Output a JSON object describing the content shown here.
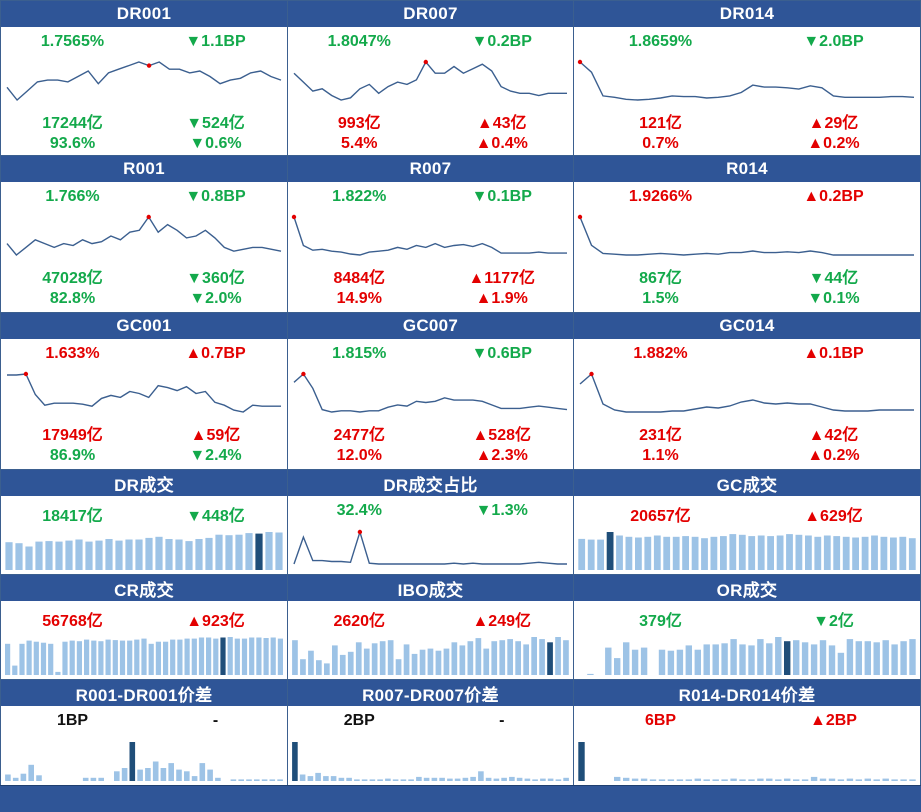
{
  "colors": {
    "header": "#2f5597",
    "up": "#e30000",
    "down": "#13a94b",
    "line": "#3b5f8f",
    "bar": "#9dc3e6",
    "bar_hi": "#1f4e79"
  },
  "panels": [
    {
      "id": "dr001",
      "title": "DR001",
      "type": "line",
      "rate": {
        "value": "1.7565%",
        "dir": "down"
      },
      "rate_chg": {
        "value": "▼1.1BP",
        "dir": "down"
      },
      "vol": {
        "value": "17244亿",
        "dir": "down"
      },
      "vol_chg": {
        "value": "▼524亿",
        "dir": "down"
      },
      "share": {
        "value": "93.6%",
        "dir": "down"
      },
      "share_chg": {
        "value": "▼0.6%",
        "dir": "down"
      },
      "chart_data": {
        "type": "line",
        "values": [
          1.66,
          1.59,
          1.64,
          1.69,
          1.7,
          1.7,
          1.69,
          1.72,
          1.75,
          1.68,
          1.74,
          1.76,
          1.78,
          1.8,
          1.78,
          1.8,
          1.76,
          1.76,
          1.74,
          1.75,
          1.72,
          1.68,
          1.7,
          1.71,
          1.74,
          1.75,
          1.72,
          1.7
        ],
        "marker_index": 14
      }
    },
    {
      "id": "dr007",
      "title": "DR007",
      "type": "line",
      "rate": {
        "value": "1.8047%",
        "dir": "down"
      },
      "rate_chg": {
        "value": "▼0.2BP",
        "dir": "down"
      },
      "vol": {
        "value": "993亿",
        "dir": "up"
      },
      "vol_chg": {
        "value": "▲43亿",
        "dir": "up"
      },
      "share": {
        "value": "5.4%",
        "dir": "up"
      },
      "share_chg": {
        "value": "▲0.4%",
        "dir": "up"
      },
      "chart_data": {
        "type": "line",
        "values": [
          1.76,
          1.72,
          1.68,
          1.69,
          1.66,
          1.64,
          1.65,
          1.69,
          1.71,
          1.67,
          1.7,
          1.72,
          1.71,
          1.73,
          1.81,
          1.76,
          1.76,
          1.79,
          1.76,
          1.78,
          1.8,
          1.77,
          1.7,
          1.68,
          1.67,
          1.67,
          1.66,
          1.67,
          1.67,
          1.67
        ],
        "marker_index": 14
      }
    },
    {
      "id": "dr014",
      "title": "DR014",
      "type": "line",
      "rate": {
        "value": "1.8659%",
        "dir": "down"
      },
      "rate_chg": {
        "value": "▼2.0BP",
        "dir": "down"
      },
      "vol": {
        "value": "121亿",
        "dir": "up"
      },
      "vol_chg": {
        "value": "▲29亿",
        "dir": "up"
      },
      "share": {
        "value": "0.7%",
        "dir": "up"
      },
      "share_chg": {
        "value": "▲0.2%",
        "dir": "up"
      },
      "chart_data": {
        "type": "line",
        "values": [
          2.3,
          2.15,
          1.8,
          1.78,
          1.75,
          1.74,
          1.75,
          1.77,
          1.8,
          1.79,
          1.79,
          1.77,
          1.78,
          1.8,
          1.85,
          1.96,
          1.93,
          1.93,
          1.92,
          1.9,
          1.95,
          1.92,
          1.8,
          1.78,
          1.78,
          1.78,
          1.78,
          1.79,
          1.79,
          1.78
        ],
        "marker_index": 0
      }
    },
    {
      "id": "r001",
      "title": "R001",
      "type": "line",
      "rate": {
        "value": "1.766%",
        "dir": "down"
      },
      "rate_chg": {
        "value": "▼0.8BP",
        "dir": "down"
      },
      "vol": {
        "value": "47028亿",
        "dir": "down"
      },
      "vol_chg": {
        "value": "▼360亿",
        "dir": "down"
      },
      "share": {
        "value": "82.8%",
        "dir": "down"
      },
      "share_chg": {
        "value": "▼2.0%",
        "dir": "down"
      },
      "chart_data": {
        "type": "line",
        "values": [
          1.72,
          1.66,
          1.7,
          1.74,
          1.72,
          1.7,
          1.72,
          1.71,
          1.74,
          1.72,
          1.73,
          1.76,
          1.74,
          1.78,
          1.79,
          1.86,
          1.78,
          1.82,
          1.79,
          1.75,
          1.76,
          1.79,
          1.75,
          1.7,
          1.68,
          1.69,
          1.7,
          1.7,
          1.69,
          1.68
        ],
        "marker_index": 15
      }
    },
    {
      "id": "r007",
      "title": "R007",
      "type": "line",
      "rate": {
        "value": "1.822%",
        "dir": "down"
      },
      "rate_chg": {
        "value": "▼0.1BP",
        "dir": "down"
      },
      "vol": {
        "value": "8484亿",
        "dir": "up"
      },
      "vol_chg": {
        "value": "▲1177亿",
        "dir": "up"
      },
      "share": {
        "value": "14.9%",
        "dir": "up"
      },
      "share_chg": {
        "value": "▲1.9%",
        "dir": "up"
      },
      "chart_data": {
        "type": "line",
        "values": [
          2.2,
          1.9,
          1.85,
          1.86,
          1.84,
          1.83,
          1.81,
          1.8,
          1.83,
          1.84,
          1.85,
          1.88,
          1.86,
          1.9,
          1.88,
          1.92,
          1.88,
          1.9,
          1.91,
          1.89,
          1.92,
          1.88,
          1.82,
          1.82,
          1.82,
          1.82,
          1.83,
          1.82,
          1.82,
          1.82
        ],
        "marker_index": 0
      }
    },
    {
      "id": "r014",
      "title": "R014",
      "type": "line",
      "rate": {
        "value": "1.9266%",
        "dir": "up"
      },
      "rate_chg": {
        "value": "▲0.2BP",
        "dir": "up"
      },
      "vol": {
        "value": "867亿",
        "dir": "down"
      },
      "vol_chg": {
        "value": "▼44亿",
        "dir": "down"
      },
      "share": {
        "value": "1.5%",
        "dir": "down"
      },
      "share_chg": {
        "value": "▼0.1%",
        "dir": "down"
      },
      "chart_data": {
        "type": "line",
        "values": [
          2.4,
          2.05,
          1.95,
          1.94,
          1.93,
          1.93,
          1.94,
          1.95,
          1.94,
          1.93,
          1.94,
          1.95,
          1.94,
          1.96,
          1.96,
          1.98,
          1.96,
          1.96,
          1.97,
          1.96,
          1.98,
          1.96,
          1.93,
          1.93,
          1.93,
          1.93,
          1.93,
          1.93,
          1.93,
          1.93
        ],
        "marker_index": 0
      }
    },
    {
      "id": "gc001",
      "title": "GC001",
      "type": "line",
      "rate": {
        "value": "1.633%",
        "dir": "up"
      },
      "rate_chg": {
        "value": "▲0.7BP",
        "dir": "up"
      },
      "vol": {
        "value": "17949亿",
        "dir": "up"
      },
      "vol_chg": {
        "value": "▲59亿",
        "dir": "up"
      },
      "share": {
        "value": "86.9%",
        "dir": "down"
      },
      "share_chg": {
        "value": "▼2.4%",
        "dir": "down"
      },
      "chart_data": {
        "type": "line",
        "values": [
          1.9,
          1.9,
          1.91,
          1.7,
          1.59,
          1.61,
          1.61,
          1.61,
          1.6,
          1.58,
          1.66,
          1.69,
          1.67,
          1.73,
          1.71,
          1.67,
          1.79,
          1.77,
          1.74,
          1.78,
          1.71,
          1.73,
          1.62,
          1.59,
          1.54,
          1.52,
          1.59,
          1.58,
          1.58,
          1.58
        ],
        "marker_index": 2
      }
    },
    {
      "id": "gc007",
      "title": "GC007",
      "type": "line",
      "rate": {
        "value": "1.815%",
        "dir": "down"
      },
      "rate_chg": {
        "value": "▼0.6BP",
        "dir": "down"
      },
      "vol": {
        "value": "2477亿",
        "dir": "up"
      },
      "vol_chg": {
        "value": "▲528亿",
        "dir": "up"
      },
      "share": {
        "value": "12.0%",
        "dir": "up"
      },
      "share_chg": {
        "value": "▲2.3%",
        "dir": "up"
      },
      "chart_data": {
        "type": "line",
        "values": [
          2.05,
          2.12,
          2.0,
          1.82,
          1.8,
          1.81,
          1.81,
          1.8,
          1.81,
          1.81,
          1.84,
          1.86,
          1.85,
          1.89,
          1.88,
          1.89,
          1.92,
          1.9,
          1.9,
          1.9,
          1.89,
          1.86,
          1.83,
          1.83,
          1.83,
          1.84,
          1.85,
          1.84,
          1.83,
          1.82
        ],
        "marker_index": 1
      }
    },
    {
      "id": "gc014",
      "title": "GC014",
      "type": "line",
      "rate": {
        "value": "1.882%",
        "dir": "up"
      },
      "rate_chg": {
        "value": "▲0.1BP",
        "dir": "up"
      },
      "vol": {
        "value": "231亿",
        "dir": "up"
      },
      "vol_chg": {
        "value": "▲42亿",
        "dir": "up"
      },
      "share": {
        "value": "1.1%",
        "dir": "up"
      },
      "share_chg": {
        "value": "▲0.2%",
        "dir": "up"
      },
      "chart_data": {
        "type": "line",
        "values": [
          2.2,
          2.3,
          2.0,
          1.94,
          1.92,
          1.92,
          1.92,
          1.92,
          1.93,
          1.93,
          1.95,
          1.97,
          1.96,
          1.98,
          2.02,
          2.04,
          2.01,
          2.0,
          2.01,
          2.0,
          2.0,
          1.97,
          1.94,
          1.93,
          1.93,
          1.93,
          1.94,
          1.94,
          1.94,
          1.94
        ],
        "marker_index": 1
      }
    },
    {
      "id": "dr_vol",
      "title": "DR成交",
      "type": "bar",
      "rate": {
        "value": "18417亿",
        "dir": "down"
      },
      "rate_chg": {
        "value": "▼448亿",
        "dir": "down"
      },
      "chart_data": {
        "type": "bar",
        "values": [
          52,
          50,
          44,
          53,
          54,
          53,
          55,
          57,
          53,
          55,
          58,
          55,
          57,
          57,
          60,
          62,
          58,
          57,
          54,
          58,
          60,
          66,
          65,
          66,
          69,
          68,
          71,
          70
        ],
        "highlight_index": 25
      }
    },
    {
      "id": "dr_ratio",
      "title": "DR成交占比",
      "type": "line",
      "rate": {
        "value": "32.4%",
        "dir": "down"
      },
      "rate_chg": {
        "value": "▼1.3%",
        "dir": "down"
      },
      "chart_data": {
        "type": "line",
        "values": [
          2,
          34,
          6,
          6,
          5,
          5,
          4,
          40,
          3,
          2,
          2,
          2,
          2,
          2,
          2,
          2,
          2,
          3,
          2,
          3,
          2,
          2,
          2,
          2,
          2,
          3,
          4,
          3,
          2,
          2
        ],
        "marker_index": 7
      }
    },
    {
      "id": "gc_vol",
      "title": "GC成交",
      "type": "bar",
      "rate": {
        "value": "20657亿",
        "dir": "up"
      },
      "rate_chg": {
        "value": "▲629亿",
        "dir": "up"
      },
      "chart_data": {
        "type": "bar",
        "values": [
          45,
          44,
          44,
          55,
          50,
          48,
          47,
          48,
          50,
          48,
          48,
          49,
          48,
          46,
          48,
          49,
          52,
          51,
          49,
          50,
          49,
          50,
          52,
          51,
          50,
          48,
          50,
          49,
          48,
          47,
          48,
          50,
          48,
          47,
          48,
          46
        ],
        "highlight_index": 3
      }
    },
    {
      "id": "cr_vol",
      "title": "CR成交",
      "type": "bar",
      "rate": {
        "value": "56768亿",
        "dir": "up"
      },
      "rate_chg": {
        "value": "▲923亿",
        "dir": "up"
      },
      "chart_data": {
        "type": "bar",
        "values": [
          60,
          18,
          60,
          66,
          64,
          62,
          60,
          6,
          64,
          66,
          65,
          68,
          66,
          65,
          68,
          67,
          66,
          66,
          68,
          70,
          60,
          64,
          64,
          68,
          68,
          70,
          70,
          72,
          72,
          70,
          72,
          73,
          70,
          70,
          72,
          72,
          71,
          72,
          70
        ],
        "highlight_index": 30
      }
    },
    {
      "id": "ibo_vol",
      "title": "IBO成交",
      "type": "bar",
      "rate": {
        "value": "2620亿",
        "dir": "up"
      },
      "rate_chg": {
        "value": "▲249亿",
        "dir": "up"
      },
      "chart_data": {
        "type": "bar",
        "values": [
          66,
          30,
          46,
          28,
          22,
          56,
          38,
          44,
          62,
          50,
          60,
          64,
          66,
          30,
          58,
          40,
          48,
          50,
          46,
          50,
          62,
          56,
          64,
          70,
          50,
          64,
          66,
          68,
          64,
          58,
          72,
          68,
          62,
          72,
          66
        ],
        "highlight_index": 32
      }
    },
    {
      "id": "or_vol",
      "title": "OR成交",
      "type": "bar",
      "rate": {
        "value": "379亿",
        "dir": "down"
      },
      "rate_chg": {
        "value": "▼2亿",
        "dir": "down"
      },
      "chart_data": {
        "type": "bar",
        "values": [
          0,
          2,
          0,
          52,
          32,
          62,
          48,
          52,
          0,
          48,
          46,
          48,
          56,
          48,
          58,
          58,
          60,
          68,
          58,
          56,
          68,
          60,
          72,
          64,
          66,
          62,
          58,
          66,
          56,
          42,
          68,
          64,
          64,
          62,
          66,
          58,
          64,
          68
        ],
        "highlight_index": 23
      }
    },
    {
      "id": "spread1",
      "title": "R001-DR001价差",
      "type": "bar",
      "neutral": true,
      "rate": {
        "value": "1BP",
        "dir": "flat"
      },
      "rate_chg": {
        "value": "-",
        "dir": "flat"
      },
      "chart_data": {
        "type": "bar",
        "values": [
          8,
          4,
          9,
          20,
          7,
          0,
          0,
          0,
          0,
          0,
          4,
          4,
          4,
          0,
          12,
          16,
          48,
          14,
          16,
          24,
          16,
          22,
          14,
          12,
          6,
          22,
          14,
          4,
          0,
          2,
          2,
          2,
          2,
          2,
          2,
          2
        ],
        "highlight_index": 16
      }
    },
    {
      "id": "spread7",
      "title": "R007-DR007价差",
      "type": "bar",
      "neutral": true,
      "rate": {
        "value": "2BP",
        "dir": "flat"
      },
      "rate_chg": {
        "value": "-",
        "dir": "flat"
      },
      "chart_data": {
        "type": "bar",
        "values": [
          48,
          8,
          6,
          10,
          6,
          6,
          4,
          4,
          2,
          2,
          2,
          2,
          3,
          2,
          2,
          2,
          5,
          4,
          4,
          4,
          3,
          3,
          4,
          5,
          12,
          4,
          3,
          4,
          5,
          4,
          3,
          2,
          3,
          3,
          2,
          4
        ],
        "highlight_index": 0
      }
    },
    {
      "id": "spread14",
      "title": "R014-DR014价差",
      "type": "bar",
      "rate": {
        "value": "6BP",
        "dir": "up"
      },
      "rate_chg": {
        "value": "▲2BP",
        "dir": "up"
      },
      "chart_data": {
        "type": "bar",
        "values": [
          48,
          0,
          0,
          0,
          5,
          4,
          3,
          3,
          2,
          2,
          2,
          2,
          2,
          3,
          2,
          2,
          2,
          3,
          2,
          2,
          3,
          3,
          2,
          3,
          2,
          2,
          5,
          3,
          3,
          2,
          3,
          2,
          3,
          2,
          3,
          2,
          2,
          2
        ],
        "highlight_index": 0
      }
    }
  ]
}
